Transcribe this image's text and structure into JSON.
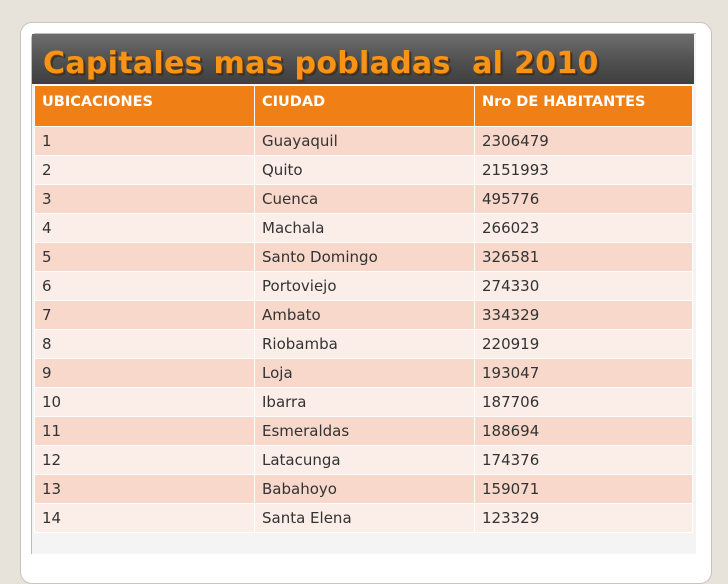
{
  "slide": {
    "title": "Capitales mas pobladas  al 2010"
  },
  "table": {
    "headers": [
      "UBICACIONES",
      "CIUDAD",
      "Nro DE HABITANTES"
    ],
    "rows": [
      [
        "1",
        "Guayaquil",
        "2306479"
      ],
      [
        "2",
        "Quito",
        "2151993"
      ],
      [
        "3",
        "Cuenca",
        "495776"
      ],
      [
        "4",
        "Machala",
        "266023"
      ],
      [
        "5",
        "Santo Domingo",
        "326581"
      ],
      [
        "6",
        "Portoviejo",
        "274330"
      ],
      [
        "7",
        "Ambato",
        "334329"
      ],
      [
        "8",
        "Riobamba",
        "220919"
      ],
      [
        "9",
        "Loja",
        "193047"
      ],
      [
        "10",
        "Ibarra",
        "187706"
      ],
      [
        "11",
        "Esmeraldas",
        "188694"
      ],
      [
        "12",
        "Latacunga",
        "174376"
      ],
      [
        "13",
        "Babahoyo",
        "159071"
      ],
      [
        "14",
        "Santa Elena",
        "123329"
      ]
    ]
  },
  "colors": {
    "header_fill": "#f08016",
    "title_text": "#f79416",
    "title_band": "#505050",
    "row_odd": "#f7d8cb",
    "row_even": "#fbede7"
  }
}
